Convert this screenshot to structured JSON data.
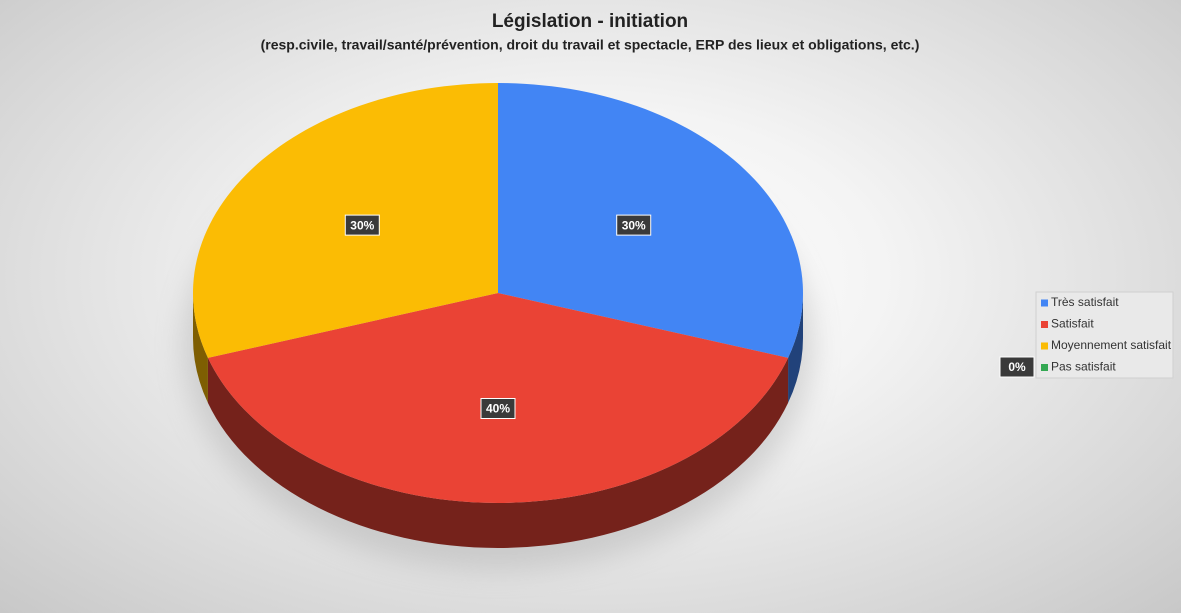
{
  "chart_data": {
    "type": "pie",
    "title": "Législation  - initiation",
    "subtitle": "(resp.civile,  travail/santé/prévention,  droit du travail et spectacle,  ERP des lieux  et obligations,  etc.)",
    "categories": [
      "Très satisfait",
      "Satisfait",
      "Moyennement satisfait",
      "Pas satisfait"
    ],
    "values": [
      30,
      40,
      30,
      0
    ],
    "value_labels": [
      "30%",
      "40%",
      "30%",
      "0%"
    ],
    "colors": [
      "#4285f4",
      "#ea4335",
      "#fbbc04",
      "#34a853"
    ],
    "legend": "right"
  }
}
